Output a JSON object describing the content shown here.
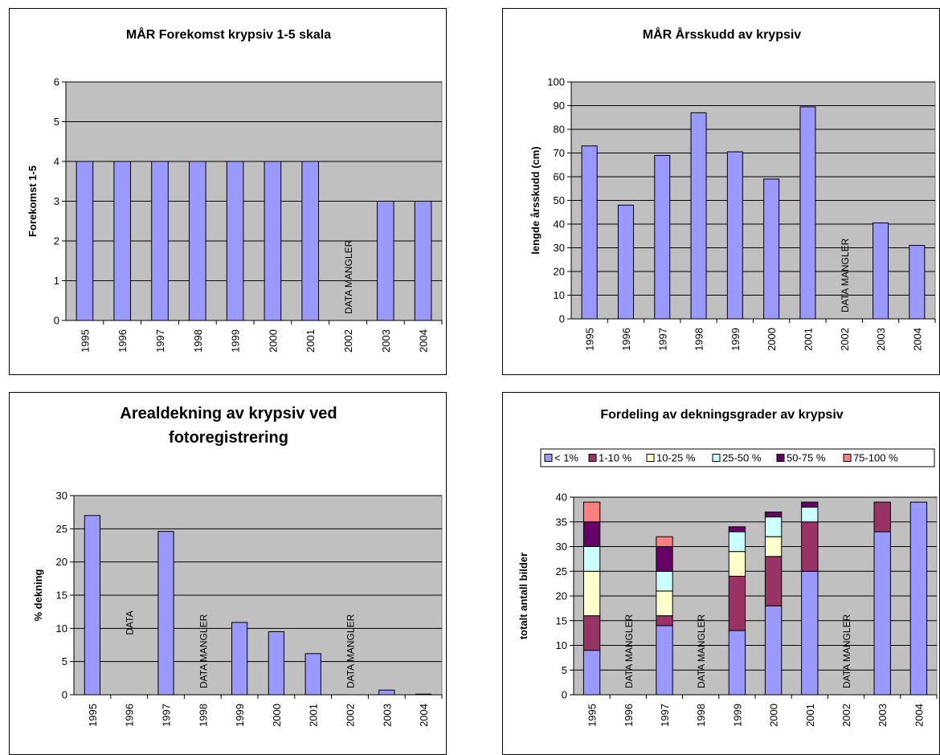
{
  "chart_data": [
    {
      "type": "bar",
      "title": "MÅR Forekomst krypsiv 1-5 skala",
      "xlabel": "",
      "ylabel": "Forekomst 1-5",
      "categories": [
        "1995",
        "1996",
        "1997",
        "1998",
        "1999",
        "2000",
        "2001",
        "2002",
        "2003",
        "2004"
      ],
      "values": [
        4,
        4,
        4,
        4,
        4,
        4,
        4,
        null,
        3,
        3
      ],
      "ylim": [
        0,
        6
      ],
      "yticks": [
        "0",
        "1",
        "2",
        "3",
        "4",
        "5",
        "6"
      ],
      "annotations": [
        {
          "category": "2002",
          "text": "DATA MANGLER"
        }
      ],
      "colors": {
        "bar": "#9999ff",
        "plot_bg": "#c0c0c0"
      },
      "grid": true
    },
    {
      "type": "bar",
      "title": "MÅR Årsskudd av krypsiv",
      "xlabel": "",
      "ylabel": "lengde årsskudd (cm)",
      "categories": [
        "1995",
        "1996",
        "1997",
        "1998",
        "1999",
        "2000",
        "2001",
        "2002",
        "2003",
        "2004"
      ],
      "values": [
        73,
        48,
        69,
        87,
        70.5,
        59,
        89.5,
        null,
        40.5,
        31
      ],
      "ylim": [
        0,
        100
      ],
      "yticks": [
        "0",
        "10",
        "20",
        "30",
        "40",
        "50",
        "60",
        "70",
        "80",
        "90",
        "100"
      ],
      "annotations": [
        {
          "category": "2002",
          "text": "DATA MANGLER"
        }
      ],
      "colors": {
        "bar": "#9999ff",
        "plot_bg": "#c0c0c0"
      },
      "grid": true
    },
    {
      "type": "bar",
      "title": "Arealdekning av krypsiv ved fotoregistrering",
      "xlabel": "",
      "ylabel": "% dekning",
      "categories": [
        "1995",
        "1996",
        "1997",
        "1998",
        "1999",
        "2000",
        "2001",
        "2002",
        "2003",
        "2004"
      ],
      "values": [
        27,
        null,
        24.6,
        null,
        10.9,
        9.5,
        6.2,
        null,
        0.7,
        0.1
      ],
      "ylim": [
        0,
        30
      ],
      "yticks": [
        "0",
        "5",
        "10",
        "15",
        "20",
        "25",
        "30"
      ],
      "annotations": [
        {
          "category": "1996",
          "text": "DATA"
        },
        {
          "category": "1998",
          "text": "DATA MANGLER"
        },
        {
          "category": "2002",
          "text": "DATA MANGLER"
        }
      ],
      "colors": {
        "bar": "#9999ff",
        "plot_bg": "#c0c0c0"
      },
      "grid": true
    },
    {
      "type": "bar",
      "stacked": true,
      "title": "Fordeling av dekningsgrader av krypsiv",
      "xlabel": "",
      "ylabel": "totalt antall bilder",
      "categories": [
        "1995",
        "1996",
        "1997",
        "1998",
        "1999",
        "2000",
        "2001",
        "2002",
        "2003",
        "2004"
      ],
      "series": [
        {
          "name": "< 1%",
          "color": "#9999ff",
          "values": [
            9,
            null,
            14,
            null,
            13,
            18,
            25,
            null,
            33,
            39
          ]
        },
        {
          "name": "1-10 %",
          "color": "#993366",
          "values": [
            7,
            null,
            2,
            null,
            11,
            10,
            10,
            null,
            6,
            0
          ]
        },
        {
          "name": "10-25 %",
          "color": "#ffffcc",
          "values": [
            9,
            null,
            5,
            null,
            5,
            4,
            0,
            null,
            0,
            0
          ]
        },
        {
          "name": "25-50 %",
          "color": "#ccffff",
          "values": [
            5,
            null,
            4,
            null,
            4,
            4,
            3,
            null,
            0,
            0
          ]
        },
        {
          "name": "50-75 %",
          "color": "#660066",
          "values": [
            5,
            null,
            5,
            null,
            1,
            1,
            1,
            null,
            0,
            0
          ]
        },
        {
          "name": "75-100 %",
          "color": "#ff8080",
          "values": [
            4,
            null,
            2,
            null,
            0,
            0,
            0,
            null,
            0,
            0
          ]
        }
      ],
      "ylim": [
        0,
        40
      ],
      "yticks": [
        "0",
        "5",
        "10",
        "15",
        "20",
        "25",
        "30",
        "35",
        "40"
      ],
      "annotations": [
        {
          "category": "1996",
          "text": "DATA MANGLER"
        },
        {
          "category": "1998",
          "text": "DATA MANGLER"
        },
        {
          "category": "2002",
          "text": "DATA MANGLER"
        }
      ],
      "legend": "top",
      "colors": {
        "plot_bg": "#c0c0c0"
      },
      "grid": true
    }
  ]
}
